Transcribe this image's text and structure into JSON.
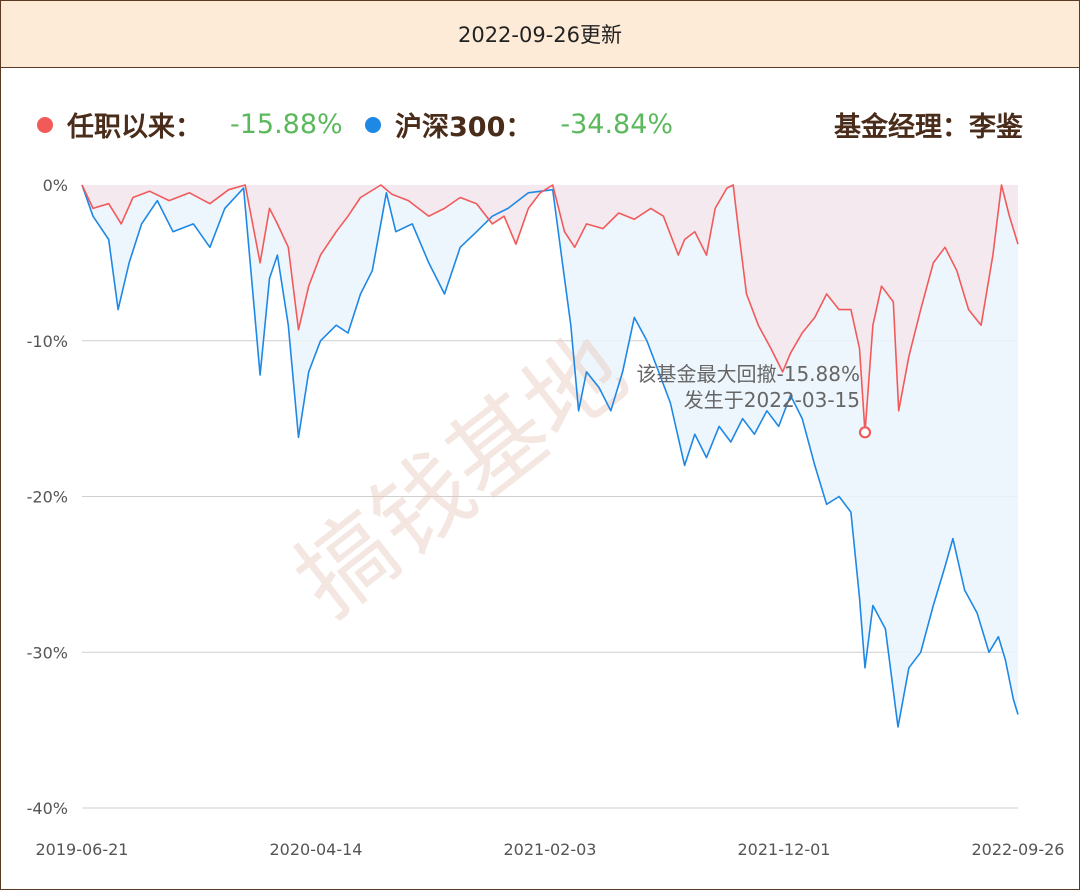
{
  "header": {
    "update_text": "2022-09-26更新"
  },
  "legend": {
    "fund": {
      "label": "任职以来：",
      "value": "-15.88%",
      "color": "#f25a5a"
    },
    "index": {
      "label": "沪深300：",
      "value": "-34.84%",
      "color": "#1e88e5"
    },
    "manager": "基金经理：李鉴"
  },
  "watermark": "搞钱基地",
  "annotation": {
    "line1": "该基金最大回撤-15.88%",
    "line2": "发生于2022-03-15"
  },
  "chart_data": {
    "type": "area",
    "ylim": [
      -40,
      0
    ],
    "y_ticks": [
      "0%",
      "-10%",
      "-20%",
      "-30%",
      "-40%"
    ],
    "x_ticks": [
      "2019-06-21",
      "2020-04-14",
      "2021-02-03",
      "2021-12-01",
      "2022-09-26"
    ],
    "grid": true,
    "series": [
      {
        "name": "任职以来",
        "color": "#f25a5a",
        "fill": "#f3e6ec",
        "points": [
          [
            "2019-06-21",
            0
          ],
          [
            "2019-07-05",
            -1.5
          ],
          [
            "2019-07-25",
            -1.2
          ],
          [
            "2019-08-10",
            -2.5
          ],
          [
            "2019-08-25",
            -0.8
          ],
          [
            "2019-09-15",
            -0.4
          ],
          [
            "2019-10-10",
            -1.0
          ],
          [
            "2019-11-05",
            -0.5
          ],
          [
            "2019-12-01",
            -1.2
          ],
          [
            "2019-12-25",
            -0.3
          ],
          [
            "2020-01-15",
            0
          ],
          [
            "2020-02-03",
            -5.0
          ],
          [
            "2020-02-15",
            -1.5
          ],
          [
            "2020-02-25",
            -2.5
          ],
          [
            "2020-03-10",
            -4.0
          ],
          [
            "2020-03-23",
            -9.3
          ],
          [
            "2020-04-05",
            -6.5
          ],
          [
            "2020-04-20",
            -4.5
          ],
          [
            "2020-05-10",
            -3.0
          ],
          [
            "2020-05-25",
            -2.0
          ],
          [
            "2020-06-10",
            -0.8
          ],
          [
            "2020-07-06",
            0
          ],
          [
            "2020-07-20",
            -0.6
          ],
          [
            "2020-08-10",
            -1.0
          ],
          [
            "2020-09-05",
            -2.0
          ],
          [
            "2020-09-25",
            -1.5
          ],
          [
            "2020-10-15",
            -0.8
          ],
          [
            "2020-11-05",
            -1.2
          ],
          [
            "2020-11-25",
            -2.5
          ],
          [
            "2020-12-10",
            -2.0
          ],
          [
            "2020-12-25",
            -3.8
          ],
          [
            "2021-01-10",
            -1.5
          ],
          [
            "2021-01-25",
            -0.5
          ],
          [
            "2021-02-10",
            0
          ],
          [
            "2021-02-25",
            -3.0
          ],
          [
            "2021-03-10",
            -4.0
          ],
          [
            "2021-03-25",
            -2.5
          ],
          [
            "2021-04-15",
            -2.8
          ],
          [
            "2021-05-05",
            -1.8
          ],
          [
            "2021-05-25",
            -2.2
          ],
          [
            "2021-06-15",
            -1.5
          ],
          [
            "2021-07-01",
            -2.0
          ],
          [
            "2021-07-20",
            -4.5
          ],
          [
            "2021-07-28",
            -3.5
          ],
          [
            "2021-08-10",
            -3.0
          ],
          [
            "2021-08-25",
            -4.5
          ],
          [
            "2021-09-05",
            -1.5
          ],
          [
            "2021-09-20",
            -0.2
          ],
          [
            "2021-09-28",
            0
          ],
          [
            "2021-10-05",
            -3.0
          ],
          [
            "2021-10-15",
            -7.0
          ],
          [
            "2021-10-30",
            -9.0
          ],
          [
            "2021-11-15",
            -10.5
          ],
          [
            "2021-11-30",
            -12.0
          ],
          [
            "2021-12-10",
            -10.8
          ],
          [
            "2021-12-25",
            -9.5
          ],
          [
            "2022-01-10",
            -8.5
          ],
          [
            "2022-01-25",
            -7.0
          ],
          [
            "2022-02-10",
            -8.0
          ],
          [
            "2022-02-25",
            -8.0
          ],
          [
            "2022-03-08",
            -10.5
          ],
          [
            "2022-03-15",
            -15.88
          ],
          [
            "2022-03-25",
            -9.0
          ],
          [
            "2022-04-05",
            -6.5
          ],
          [
            "2022-04-20",
            -7.5
          ],
          [
            "2022-04-27",
            -14.5
          ],
          [
            "2022-05-10",
            -11.0
          ],
          [
            "2022-05-25",
            -8.0
          ],
          [
            "2022-06-10",
            -5.0
          ],
          [
            "2022-06-25",
            -4.0
          ],
          [
            "2022-07-10",
            -5.5
          ],
          [
            "2022-07-25",
            -8.0
          ],
          [
            "2022-08-10",
            -9.0
          ],
          [
            "2022-08-25",
            -4.5
          ],
          [
            "2022-09-05",
            0
          ],
          [
            "2022-09-15",
            -2.0
          ],
          [
            "2022-09-26",
            -3.8
          ]
        ]
      },
      {
        "name": "沪深300",
        "color": "#1e88e5",
        "fill": "#ebf4fd",
        "points": [
          [
            "2019-06-21",
            0
          ],
          [
            "2019-07-05",
            -2.0
          ],
          [
            "2019-07-25",
            -3.5
          ],
          [
            "2019-08-06",
            -8.0
          ],
          [
            "2019-08-20",
            -5.0
          ],
          [
            "2019-09-05",
            -2.5
          ],
          [
            "2019-09-25",
            -1.0
          ],
          [
            "2019-10-15",
            -3.0
          ],
          [
            "2019-11-10",
            -2.5
          ],
          [
            "2019-12-01",
            -4.0
          ],
          [
            "2019-12-20",
            -1.5
          ],
          [
            "2020-01-13",
            -0.2
          ],
          [
            "2020-02-03",
            -12.2
          ],
          [
            "2020-02-15",
            -6.0
          ],
          [
            "2020-02-25",
            -4.5
          ],
          [
            "2020-03-10",
            -9.0
          ],
          [
            "2020-03-23",
            -16.2
          ],
          [
            "2020-04-05",
            -12.0
          ],
          [
            "2020-04-20",
            -10.0
          ],
          [
            "2020-05-10",
            -9.0
          ],
          [
            "2020-05-25",
            -9.5
          ],
          [
            "2020-06-10",
            -7.0
          ],
          [
            "2020-06-25",
            -5.5
          ],
          [
            "2020-07-13",
            -0.5
          ],
          [
            "2020-07-25",
            -3.0
          ],
          [
            "2020-08-15",
            -2.5
          ],
          [
            "2020-09-05",
            -5.0
          ],
          [
            "2020-09-25",
            -7.0
          ],
          [
            "2020-10-15",
            -4.0
          ],
          [
            "2020-11-05",
            -3.0
          ],
          [
            "2020-11-25",
            -2.0
          ],
          [
            "2020-12-15",
            -1.5
          ],
          [
            "2021-01-10",
            -0.5
          ],
          [
            "2021-02-10",
            -0.3
          ],
          [
            "2021-02-25",
            -6.0
          ],
          [
            "2021-03-05",
            -9.0
          ],
          [
            "2021-03-15",
            -14.5
          ],
          [
            "2021-03-25",
            -12.0
          ],
          [
            "2021-04-10",
            -13.0
          ],
          [
            "2021-04-25",
            -14.5
          ],
          [
            "2021-05-10",
            -12.0
          ],
          [
            "2021-05-25",
            -8.5
          ],
          [
            "2021-06-10",
            -10.0
          ],
          [
            "2021-06-25",
            -12.0
          ],
          [
            "2021-07-10",
            -14.0
          ],
          [
            "2021-07-28",
            -18.0
          ],
          [
            "2021-08-10",
            -16.0
          ],
          [
            "2021-08-25",
            -17.5
          ],
          [
            "2021-09-10",
            -15.5
          ],
          [
            "2021-09-25",
            -16.5
          ],
          [
            "2021-10-10",
            -15.0
          ],
          [
            "2021-10-25",
            -16.0
          ],
          [
            "2021-11-10",
            -14.5
          ],
          [
            "2021-11-25",
            -15.5
          ],
          [
            "2021-12-10",
            -13.5
          ],
          [
            "2021-12-25",
            -15.0
          ],
          [
            "2022-01-10",
            -18.0
          ],
          [
            "2022-01-25",
            -20.5
          ],
          [
            "2022-02-10",
            -20.0
          ],
          [
            "2022-02-25",
            -21.0
          ],
          [
            "2022-03-08",
            -26.5
          ],
          [
            "2022-03-15",
            -31.0
          ],
          [
            "2022-03-25",
            -27.0
          ],
          [
            "2022-04-10",
            -28.5
          ],
          [
            "2022-04-26",
            -34.8
          ],
          [
            "2022-05-10",
            -31.0
          ],
          [
            "2022-05-25",
            -30.0
          ],
          [
            "2022-06-10",
            -27.0
          ],
          [
            "2022-06-25",
            -24.5
          ],
          [
            "2022-07-05",
            -22.7
          ],
          [
            "2022-07-20",
            -26.0
          ],
          [
            "2022-08-05",
            -27.5
          ],
          [
            "2022-08-20",
            -30.0
          ],
          [
            "2022-09-01",
            -29.0
          ],
          [
            "2022-09-10",
            -30.5
          ],
          [
            "2022-09-20",
            -33.0
          ],
          [
            "2022-09-26",
            -34.0
          ]
        ]
      }
    ],
    "max_drawdown": {
      "date": "2022-03-15",
      "value": -15.88
    }
  }
}
